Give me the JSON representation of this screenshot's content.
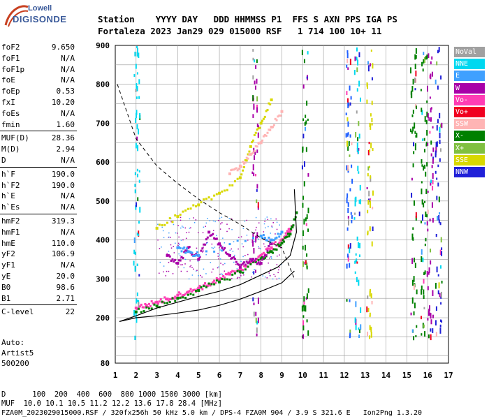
{
  "logo": {
    "top": "Lowell",
    "main": "DIGISONDE"
  },
  "header": {
    "line1": "Station    YYYY DAY   DDD HHMMSS P1  FFS S AXN PPS IGA PS",
    "line2": "Fortaleza 2023 Jan29 029 015000 RSF   1 714 100 10+ 11"
  },
  "params": [
    {
      "name": "foF2",
      "value": "9.650"
    },
    {
      "name": "foF1",
      "value": "N/A"
    },
    {
      "name": "foF1p",
      "value": "N/A"
    },
    {
      "name": "foE",
      "value": "N/A"
    },
    {
      "name": "foEp",
      "value": "0.53"
    },
    {
      "name": "fxI",
      "value": "10.20"
    },
    {
      "name": "foEs",
      "value": "N/A"
    },
    {
      "name": "fmin",
      "value": "1.60"
    },
    {
      "name": "MUF(D)",
      "value": "28.36"
    },
    {
      "name": "M(D)",
      "value": "2.94"
    },
    {
      "name": "D",
      "value": "N/A"
    },
    {
      "name": "h`F",
      "value": "190.0"
    },
    {
      "name": "h`F2",
      "value": "190.0"
    },
    {
      "name": "h`E",
      "value": "N/A"
    },
    {
      "name": "h`Es",
      "value": "N/A"
    },
    {
      "name": "hmF2",
      "value": "319.3"
    },
    {
      "name": "hmF1",
      "value": "N/A"
    },
    {
      "name": "hmE",
      "value": "110.0"
    },
    {
      "name": "yF2",
      "value": "106.9"
    },
    {
      "name": "yF1",
      "value": "N/A"
    },
    {
      "name": "yE",
      "value": "20.0"
    },
    {
      "name": "B0",
      "value": "98.6"
    },
    {
      "name": "B1",
      "value": "2.71"
    },
    {
      "name": "C-level",
      "value": "22"
    }
  ],
  "auto": {
    "line1": "Auto:",
    "line2": "Artist5",
    "line3": "500200"
  },
  "legend": [
    {
      "label": "NoVal",
      "color": "#a0a0a0"
    },
    {
      "label": "NNE",
      "color": "#00d8f0"
    },
    {
      "label": "E",
      "color": "#3fa0ff"
    },
    {
      "label": "W",
      "color": "#a800a8"
    },
    {
      "label": "Vo-",
      "color": "#ff3cb4"
    },
    {
      "label": "Vo+",
      "color": "#f00020"
    },
    {
      "label": "SSW",
      "color": "#ffb4b4"
    },
    {
      "label": "X-",
      "color": "#008000"
    },
    {
      "label": "X+",
      "color": "#80c040"
    },
    {
      "label": "SSE",
      "color": "#d8d800"
    },
    {
      "label": "NNW",
      "color": "#2020d8"
    }
  ],
  "footer": {
    "line1": "D      100  200  400  600  800 1000 1500 3000 [km]",
    "line2": "MUF  10.0 10.1 10.5 11.2 12.2 13.6 17.8 28.4 [MHz]",
    "line3": "FZA0M_2023029015000.RSF / 320fx256h 50 kHz 5.0 km / DPS-4 FZA0M 904 / 3.9 S 321.6 E   Ion2Png 1.3.20"
  },
  "chart_data": {
    "type": "scatter",
    "xlim": [
      1,
      17
    ],
    "ylim": [
      80,
      900
    ],
    "x_ticks": [
      1,
      2,
      3,
      4,
      5,
      6,
      7,
      8,
      9,
      10,
      11,
      12,
      13,
      14,
      15,
      16,
      17
    ],
    "y_ticks": [
      80,
      200,
      300,
      400,
      500,
      600,
      700,
      800,
      900
    ],
    "grid": true,
    "series": [
      {
        "name": "virtual height O-trace",
        "color": "#ff3cb4",
        "x": [
          2.0,
          2.5,
          3.0,
          3.5,
          4.0,
          4.5,
          5.0,
          5.5,
          6.0,
          6.5,
          7.0,
          7.5,
          8.0,
          8.5,
          9.0,
          9.3,
          9.5
        ],
        "y": [
          225,
          232,
          240,
          248,
          258,
          266,
          276,
          286,
          298,
          312,
          325,
          342,
          360,
          380,
          400,
          420,
          435
        ]
      },
      {
        "name": "virtual height X-trace",
        "color": "#008000",
        "x": [
          2.0,
          3.0,
          4.0,
          5.0,
          6.0,
          7.0,
          8.0,
          8.5,
          9.0,
          9.4,
          9.7
        ],
        "y": [
          215,
          230,
          250,
          270,
          292,
          318,
          352,
          370,
          392,
          415,
          470
        ]
      },
      {
        "name": "oblique spread W",
        "color": "#a800a8",
        "x": [
          3.5,
          4.0,
          4.5,
          5.0,
          5.5,
          6.0,
          6.5,
          7.0,
          7.5,
          8.0,
          8.5
        ],
        "y": [
          360,
          340,
          380,
          350,
          420,
          390,
          360,
          330,
          350,
          340,
          390
        ]
      },
      {
        "name": "oblique E",
        "color": "#3fa0ff",
        "x": [
          4.0,
          4.5,
          5.0,
          8.0,
          8.5,
          9.0
        ],
        "y": [
          380,
          370,
          360,
          410,
          400,
          420
        ]
      },
      {
        "name": "SSE trace",
        "color": "#d8d800",
        "x": [
          3.0,
          4.0,
          5.0,
          6.0,
          7.0,
          7.5,
          8.0,
          8.5
        ],
        "y": [
          430,
          460,
          490,
          520,
          560,
          640,
          700,
          760
        ]
      },
      {
        "name": "SSW trace",
        "color": "#ffb4b4",
        "x": [
          6.5,
          7.0,
          7.5,
          8.0,
          8.5,
          9.0
        ],
        "y": [
          570,
          590,
          620,
          650,
          690,
          730
        ]
      }
    ],
    "curves": {
      "profile_solid": {
        "x": [
          1.2,
          2,
          3,
          4,
          5,
          6,
          7,
          8,
          8.8,
          9.4,
          9.7,
          9.6
        ],
        "y": [
          190,
          205,
          225,
          240,
          255,
          268,
          285,
          310,
          330,
          360,
          420,
          530
        ]
      },
      "profile_lower": {
        "x": [
          1.2,
          2,
          3,
          4,
          5,
          6,
          7,
          8,
          9,
          9.6
        ],
        "y": [
          190,
          200,
          205,
          212,
          220,
          232,
          248,
          268,
          290,
          320
        ]
      },
      "dashed_muf": {
        "x": [
          1.1,
          2,
          3,
          4,
          5,
          6,
          7,
          8,
          9,
          9.6
        ],
        "y": [
          800,
          660,
          590,
          545,
          505,
          470,
          440,
          405,
          380,
          300
        ]
      }
    }
  }
}
